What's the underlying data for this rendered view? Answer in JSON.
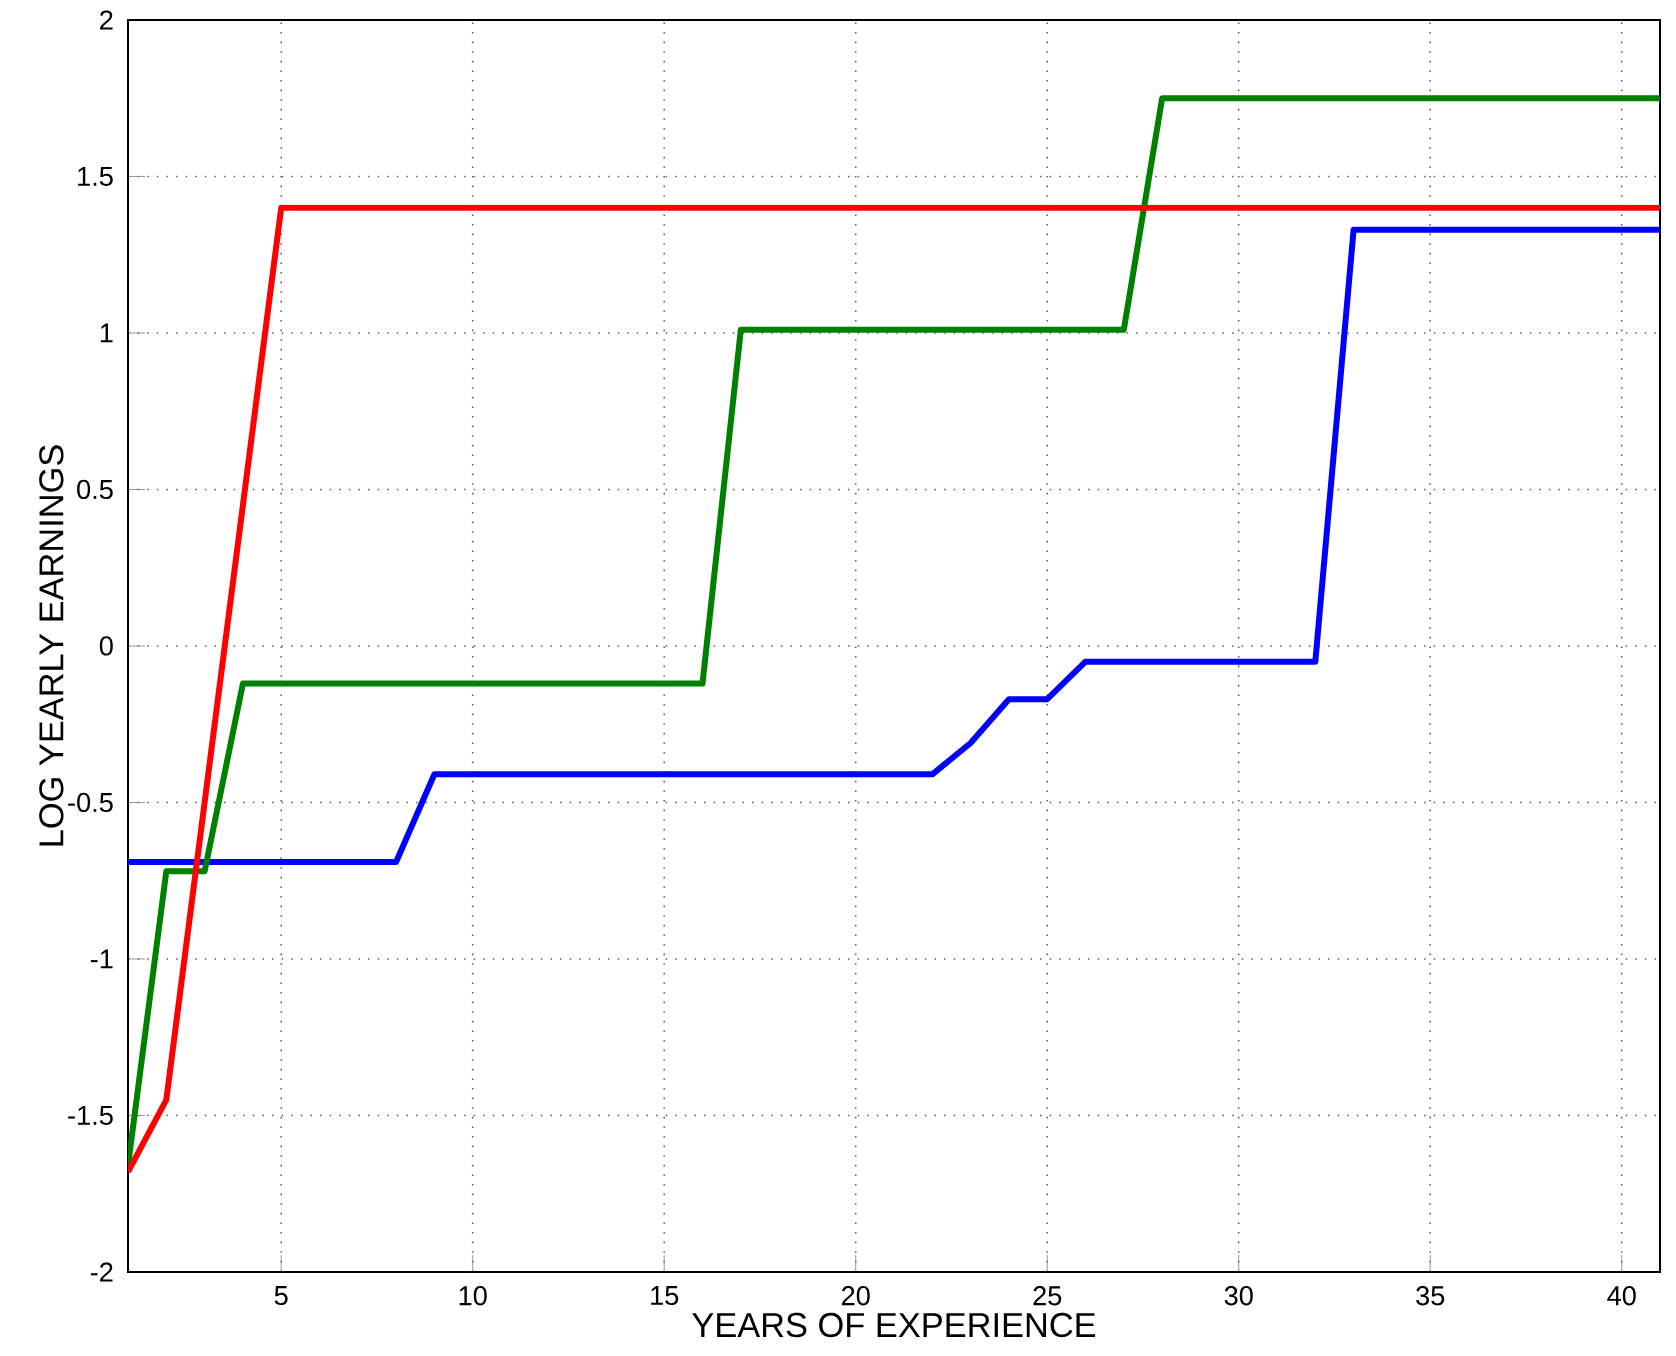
{
  "chart_data": {
    "type": "line",
    "xlabel": "YEARS OF EXPERIENCE",
    "ylabel": "LOG YEARLY EARNINGS",
    "xlim": [
      1,
      41
    ],
    "ylim": [
      -2,
      2
    ],
    "xticks": [
      5,
      10,
      15,
      20,
      25,
      30,
      35,
      40
    ],
    "yticks": [
      -2,
      -1.5,
      -1,
      -0.5,
      0,
      0.5,
      1,
      1.5,
      2
    ],
    "grid": true,
    "line_style": "solid",
    "series": [
      {
        "color": "#0000ff",
        "x": [
          1,
          8,
          9,
          22,
          23,
          24,
          25,
          26,
          32,
          33,
          41
        ],
        "values": [
          -0.69,
          -0.69,
          -0.41,
          -0.41,
          -0.31,
          -0.17,
          -0.17,
          -0.05,
          -0.05,
          1.33,
          1.33
        ]
      },
      {
        "color": "#008000",
        "x": [
          1,
          2,
          3,
          4,
          16,
          17,
          27,
          28,
          41
        ],
        "values": [
          -1.66,
          -0.72,
          -0.72,
          -0.12,
          -0.12,
          1.01,
          1.01,
          1.75,
          1.75
        ]
      },
      {
        "color": "#ff0000",
        "x": [
          1,
          2,
          5,
          41
        ],
        "values": [
          -1.68,
          -1.45,
          1.4,
          1.4
        ]
      }
    ]
  }
}
